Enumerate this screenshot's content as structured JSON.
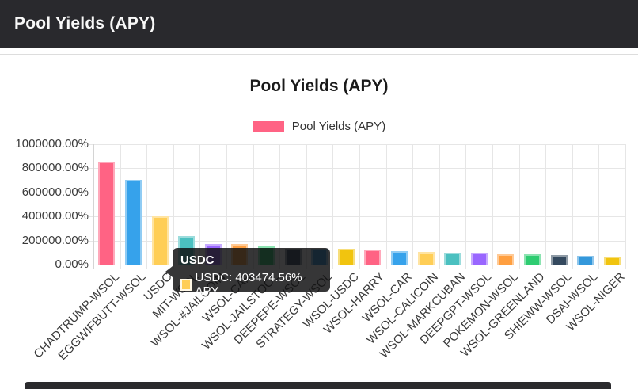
{
  "header": {
    "title": "Pool Yields (APY)"
  },
  "chart": {
    "title": "Pool Yields (APY)",
    "legend": {
      "label": "Pool Yields (APY)",
      "swatch_color": "#FF6384"
    },
    "tooltip": {
      "title": "USDC",
      "line": "USDC: 403474.56% APY",
      "swatch_color": "#FFCE56"
    }
  },
  "chart_data": {
    "type": "bar",
    "title": "Pool Yields (APY)",
    "legend_entries": [
      "Pool Yields (APY)"
    ],
    "legend_position": "top",
    "grid": true,
    "ylim": [
      0,
      1000000
    ],
    "y_tick_labels": [
      "1000000.00%",
      "800000.00%",
      "600000.00%",
      "400000.00%",
      "200000.00%",
      "0.00%"
    ],
    "y_unit": "% APY",
    "categories": [
      "CHADTRUMP-WSOL",
      "EGGWIFBUTT-WSOL",
      "USDC",
      "MIT-WSOL",
      "WSOL-#JAILCOIN",
      "WSOL-CAR",
      "WSOL-JAILSTOOL",
      "DEEPEPE-WSOL",
      "STRATEGY-WSOL",
      "WSOL-USDC",
      "WSOL-HARRY",
      "WSOL-CAR",
      "WSOL-CALICOIN",
      "WSOL-MARKCUBAN",
      "DEEPGPT-WSOL",
      "POKEMON-WSOL",
      "WSOL-GREENLAND",
      "SHIEWW-WSOL",
      "DSAI-WSOL",
      "WSOL-NIGER"
    ],
    "values": [
      855000,
      705000,
      403474.56,
      237000,
      169000,
      173000,
      149000,
      134000,
      131000,
      130000,
      123000,
      114000,
      105000,
      101000,
      96000,
      84000,
      83000,
      77000,
      72000,
      64000
    ],
    "bar_colors": [
      "#FF6384",
      "#36A2EB",
      "#FFCE56",
      "#4BC0C0",
      "#9966FF",
      "#FF9F40",
      "#2ECC71",
      "#34495E",
      "#3498DB",
      "#F1C40F",
      "#FF6384",
      "#36A2EB",
      "#FFCE56",
      "#4BC0C0",
      "#9966FF",
      "#FF9F40",
      "#2ECC71",
      "#34495E",
      "#3498DB",
      "#F1C40F"
    ],
    "tooltip": {
      "category": "USDC",
      "value": 403474.56,
      "text": "USDC: 403474.56% APY"
    }
  }
}
